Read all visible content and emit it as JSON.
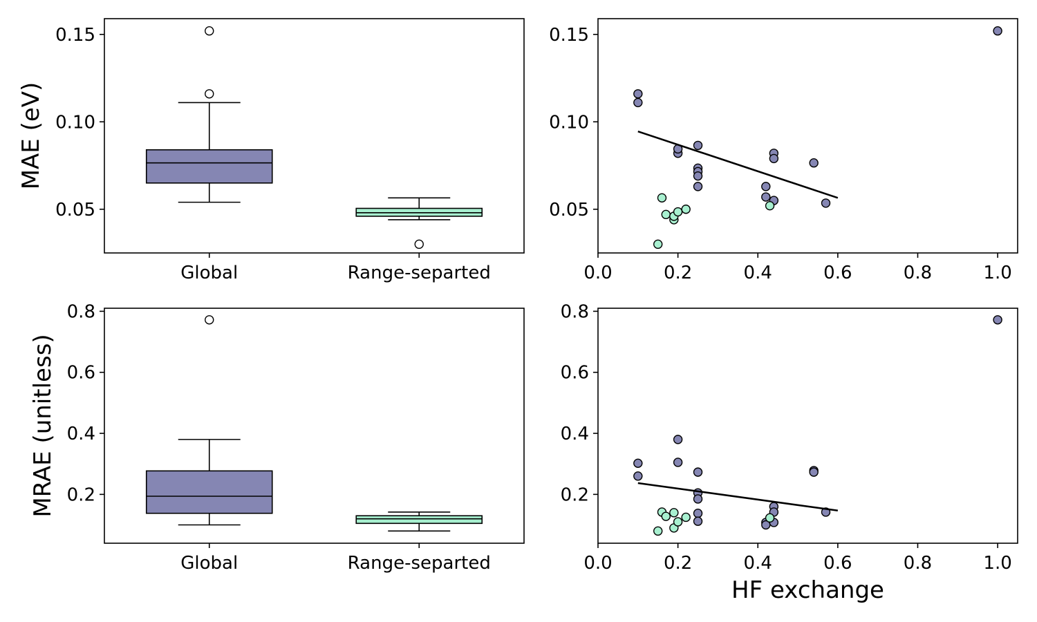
{
  "colors": {
    "global": "#8586b3",
    "range_separated": "#a8f0d0"
  },
  "chart_data": [
    {
      "type": "box",
      "panel": "top-left",
      "ylabel": "MAE (eV)",
      "ylim": [
        0.025,
        0.159
      ],
      "yticks": [
        "0.05",
        "0.10",
        "0.15"
      ],
      "categories": [
        "Global",
        "Range-separted"
      ],
      "boxes": [
        {
          "name": "Global",
          "whisker_low": 0.054,
          "q1": 0.065,
          "median": 0.0765,
          "q3": 0.084,
          "whisker_high": 0.111,
          "outliers": [
            0.116,
            0.152
          ]
        },
        {
          "name": "Range-separted",
          "whisker_low": 0.044,
          "q1": 0.046,
          "median": 0.048,
          "q3": 0.0505,
          "whisker_high": 0.0565,
          "outliers": [
            0.03
          ]
        }
      ]
    },
    {
      "type": "scatter",
      "panel": "top-right",
      "xlim": [
        0.0,
        1.05
      ],
      "ylim": [
        0.025,
        0.159
      ],
      "xticks": [
        "0.0",
        "0.2",
        "0.4",
        "0.6",
        "0.8",
        "1.0"
      ],
      "yticks": [
        "0.05",
        "0.10",
        "0.15"
      ],
      "series": [
        {
          "group": "Global",
          "points": [
            [
              0.1,
              0.116
            ],
            [
              0.1,
              0.111
            ],
            [
              0.2,
              0.082
            ],
            [
              0.2,
              0.0845
            ],
            [
              0.25,
              0.0865
            ],
            [
              0.25,
              0.0735
            ],
            [
              0.25,
              0.0715
            ],
            [
              0.25,
              0.069
            ],
            [
              0.25,
              0.063
            ],
            [
              0.42,
              0.063
            ],
            [
              0.42,
              0.057
            ],
            [
              0.44,
              0.082
            ],
            [
              0.44,
              0.079
            ],
            [
              0.44,
              0.055
            ],
            [
              0.54,
              0.0765
            ],
            [
              0.57,
              0.0535
            ],
            [
              1.0,
              0.152
            ]
          ]
        },
        {
          "group": "Range-separted",
          "points": [
            [
              0.15,
              0.03
            ],
            [
              0.16,
              0.0565
            ],
            [
              0.17,
              0.047
            ],
            [
              0.19,
              0.044
            ],
            [
              0.19,
              0.046
            ],
            [
              0.2,
              0.0485
            ],
            [
              0.22,
              0.05
            ],
            [
              0.43,
              0.052
            ]
          ]
        }
      ],
      "fit_line": [
        [
          0.1,
          0.0945
        ],
        [
          0.6,
          0.0565
        ]
      ]
    },
    {
      "type": "box",
      "panel": "bottom-left",
      "ylabel": "MRAE (unitless)",
      "ylim": [
        0.04,
        0.81
      ],
      "yticks": [
        "0.2",
        "0.4",
        "0.6",
        "0.8"
      ],
      "categories": [
        "Global",
        "Range-separted"
      ],
      "boxes": [
        {
          "name": "Global",
          "whisker_low": 0.1,
          "q1": 0.138,
          "median": 0.194,
          "q3": 0.277,
          "whisker_high": 0.38,
          "outliers": [
            0.772
          ]
        },
        {
          "name": "Range-separted",
          "whisker_low": 0.08,
          "q1": 0.105,
          "median": 0.12,
          "q3": 0.13,
          "whisker_high": 0.142,
          "outliers": []
        }
      ]
    },
    {
      "type": "scatter",
      "panel": "bottom-right",
      "xlabel": "HF exchange",
      "xlim": [
        0.0,
        1.05
      ],
      "ylim": [
        0.04,
        0.81
      ],
      "xticks": [
        "0.0",
        "0.2",
        "0.4",
        "0.6",
        "0.8",
        "1.0"
      ],
      "yticks": [
        "0.2",
        "0.4",
        "0.6",
        "0.8"
      ],
      "series": [
        {
          "group": "Global",
          "points": [
            [
              0.1,
              0.302
            ],
            [
              0.1,
              0.26
            ],
            [
              0.2,
              0.38
            ],
            [
              0.2,
              0.305
            ],
            [
              0.25,
              0.273
            ],
            [
              0.25,
              0.205
            ],
            [
              0.25,
              0.185
            ],
            [
              0.25,
              0.138
            ],
            [
              0.25,
              0.112
            ],
            [
              0.42,
              0.108
            ],
            [
              0.42,
              0.1
            ],
            [
              0.44,
              0.16
            ],
            [
              0.44,
              0.142
            ],
            [
              0.44,
              0.108
            ],
            [
              0.54,
              0.278
            ],
            [
              0.54,
              0.273
            ],
            [
              0.57,
              0.142
            ],
            [
              1.0,
              0.772
            ]
          ]
        },
        {
          "group": "Range-separted",
          "points": [
            [
              0.15,
              0.08
            ],
            [
              0.16,
              0.142
            ],
            [
              0.17,
              0.128
            ],
            [
              0.19,
              0.14
            ],
            [
              0.19,
              0.09
            ],
            [
              0.2,
              0.11
            ],
            [
              0.22,
              0.125
            ],
            [
              0.43,
              0.123
            ]
          ]
        }
      ],
      "fit_line": [
        [
          0.1,
          0.237
        ],
        [
          0.6,
          0.147
        ]
      ]
    }
  ]
}
